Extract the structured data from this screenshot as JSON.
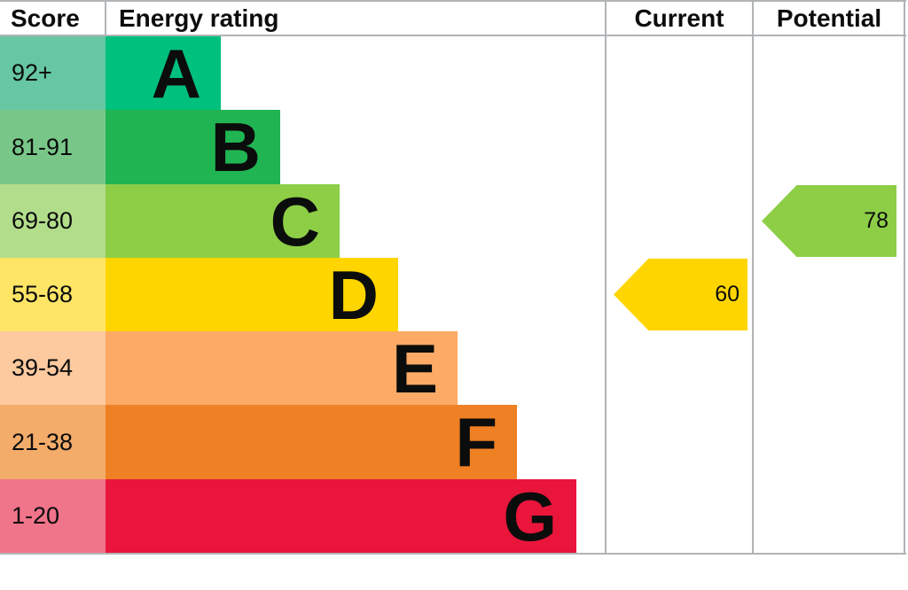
{
  "header": {
    "score_label": "Score",
    "rating_label": "Energy rating",
    "current_label": "Current",
    "potential_label": "Potential"
  },
  "chart_data": {
    "type": "bar",
    "orientation": "horizontal",
    "description": "EPC energy efficiency rating bands with current and potential scores",
    "bands": [
      {
        "letter": "A",
        "score_range": "92+",
        "bar_color": "#00C07D",
        "range_color": "#66C7A2"
      },
      {
        "letter": "B",
        "score_range": "81-91",
        "bar_color": "#21B452",
        "range_color": "#79C788"
      },
      {
        "letter": "C",
        "score_range": "69-80",
        "bar_color": "#8DCE46",
        "range_color": "#B2DD8B"
      },
      {
        "letter": "D",
        "score_range": "55-68",
        "bar_color": "#FFD500",
        "range_color": "#FFE566"
      },
      {
        "letter": "E",
        "score_range": "39-54",
        "bar_color": "#FCAA65",
        "range_color": "#FDC99F"
      },
      {
        "letter": "F",
        "score_range": "21-38",
        "bar_color": "#EF8023",
        "range_color": "#F4AC6B"
      },
      {
        "letter": "G",
        "score_range": "1-20",
        "bar_color": "#E9153B",
        "range_color": "#F0748A"
      }
    ],
    "markers": {
      "current": {
        "value": 60,
        "band": "D",
        "color": "#FFD500"
      },
      "potential": {
        "value": 78,
        "band": "C",
        "color": "#8DCE46"
      }
    }
  },
  "colors": {
    "border": "#b1b4b6",
    "background": "#ffffff",
    "text": "#0b0c0c"
  }
}
